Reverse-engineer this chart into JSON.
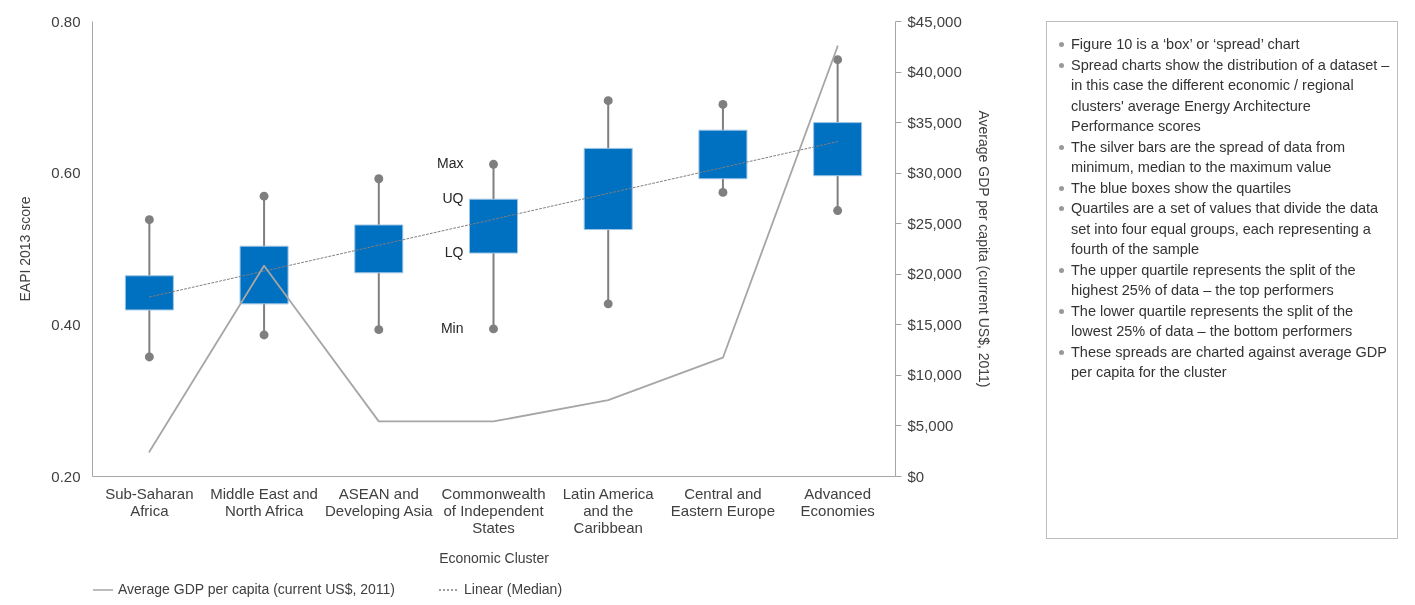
{
  "chart_data": [
    {
      "type": "box",
      "xlabel": "Economic Cluster",
      "ylabel": "EAPI 2013 score",
      "y2label": "Average GDP per capita (current US$, 2011)",
      "categories": [
        "Sub-Saharan Africa",
        "Middle East and North Africa",
        "ASEAN and Developing Asia",
        "Commonwealth of Independent States",
        "Latin America and the Caribbean",
        "Central and Eastern Europe",
        "Advanced Economies"
      ],
      "ylim": [
        0.2,
        0.8
      ],
      "yticks": [
        {
          "value": 0.2,
          "label": "0.20"
        },
        {
          "value": 0.4,
          "label": "0.40"
        },
        {
          "value": 0.6,
          "label": "0.60"
        },
        {
          "value": 0.8,
          "label": "0.80"
        }
      ],
      "y2lim": [
        0,
        45000
      ],
      "y2ticks": [
        {
          "value": 0,
          "label": "$0"
        },
        {
          "value": 5000,
          "label": "$5,000"
        },
        {
          "value": 10000,
          "label": "$10,000"
        },
        {
          "value": 15000,
          "label": "$15,000"
        },
        {
          "value": 20000,
          "label": "$20,000"
        },
        {
          "value": 25000,
          "label": "$25,000"
        },
        {
          "value": 30000,
          "label": "$30,000"
        },
        {
          "value": 35000,
          "label": "$35,000"
        },
        {
          "value": 40000,
          "label": "$40,000"
        },
        {
          "value": 45000,
          "label": "$45,000"
        }
      ],
      "legend": "bottom",
      "series": [
        {
          "type": "scatter",
          "color": "#7f7f7f",
          "marker": "circle",
          "x": [
            "Sub-Saharan Africa",
            "Sub-Saharan Africa",
            "Middle East and North Africa",
            "Middle East and North Africa",
            "ASEAN and Developing Asia",
            "ASEAN and Developing Asia",
            "Commonwealth of Independent States",
            "Commonwealth of Independent States",
            "Latin America and the Caribbean",
            "Latin America and the Caribbean",
            "Central and Eastern Europe",
            "Central and Eastern Europe",
            "Advanced Economies",
            "Advanced Economies"
          ],
          "values": [
            0.357,
            0.538,
            0.386,
            0.569,
            0.393,
            0.592,
            0.394,
            0.611,
            0.427,
            0.695,
            0.574,
            0.69,
            0.55,
            0.749
          ]
        },
        {
          "type": "box",
          "color": "#0070c0",
          "boxes": [
            {
              "low": 0.357,
              "q1": 0.419,
              "q3": 0.464,
              "high": 0.538
            },
            {
              "low": 0.386,
              "q1": 0.427,
              "q3": 0.503,
              "high": 0.569
            },
            {
              "low": 0.393,
              "q1": 0.468,
              "q3": 0.531,
              "high": 0.592
            },
            {
              "low": 0.394,
              "q1": 0.494,
              "q3": 0.565,
              "high": 0.611
            },
            {
              "low": 0.427,
              "q1": 0.525,
              "q3": 0.632,
              "high": 0.695
            },
            {
              "low": 0.574,
              "q1": 0.592,
              "q3": 0.656,
              "high": 0.69
            },
            {
              "low": 0.55,
              "q1": 0.596,
              "q3": 0.666,
              "high": 0.749
            }
          ]
        },
        {
          "type": "line",
          "name": "Average GDP per capita (current US$, 2011)",
          "color": "#a6a6a6",
          "axis": "y2",
          "line_style": "solid",
          "values": [
            2400,
            20800,
            5400,
            5400,
            7500,
            11700,
            42500
          ]
        },
        {
          "type": "line",
          "name": "Linear (Median)",
          "color": "#7f7f7f",
          "line_style": "dotted",
          "x": [
            "Sub-Saharan Africa",
            "Advanced Economies"
          ],
          "values": [
            0.436,
            0.641
          ]
        }
      ],
      "annotations": [
        {
          "text": "Max",
          "x": "Commonwealth of Independent States",
          "y": 0.611
        },
        {
          "text": "UQ",
          "x": "Commonwealth of Independent States",
          "y": 0.565
        },
        {
          "text": "LQ",
          "x": "Commonwealth of Independent States",
          "y": 0.494
        },
        {
          "text": "Min",
          "x": "Commonwealth of Independent States",
          "y": 0.394
        }
      ]
    },
    {
      "type": "other",
      "annotations": [
        "Figure 10 is a ‘box’ or ‘spread’ chart",
        "Spread charts show the distribution of a dataset – in this case the different economic / regional clusters' average Energy Architecture Performance scores",
        "The silver bars are the spread of data from minimum, median to the maximum value",
        "The blue boxes show the quartiles",
        "Quartiles are a set of values that divide the data set into four equal groups, each representing a fourth of the sample",
        "The upper quartile represents the split of the highest 25% of data – the top performers",
        "The lower quartile represents the split of the lowest 25% of data – the bottom performers",
        "These spreads are charted against average GDP per capita for the cluster"
      ]
    }
  ]
}
